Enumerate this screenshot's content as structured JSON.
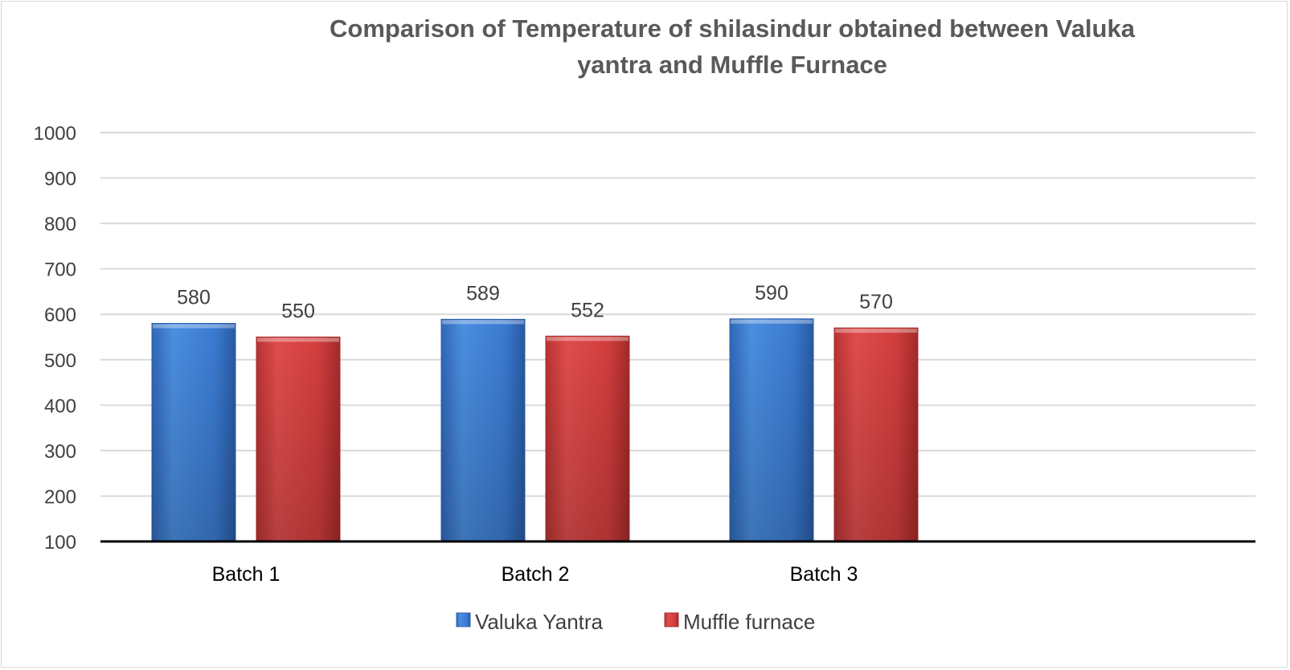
{
  "chart_data": {
    "type": "bar",
    "title": "Comparison of Temperature of shilasindur obtained between Valuka yantra and Muffle Furnace",
    "title_lines": [
      "Comparison of Temperature of shilasindur obtained between Valuka",
      "yantra and Muffle Furnace"
    ],
    "xlabel": "",
    "ylabel": "",
    "categories": [
      "Batch 1",
      "Batch 2",
      "Batch 3"
    ],
    "series": [
      {
        "name": "Valuka Yantra",
        "values": [
          580,
          589,
          590
        ],
        "color": "#3f7fd6",
        "color_dark": "#2c5fa8"
      },
      {
        "name": "Muffle furnace",
        "values": [
          550,
          552,
          570
        ],
        "color": "#d93f3f",
        "color_dark": "#a82c2c"
      }
    ],
    "ylim": [
      100,
      1000
    ],
    "yticks": [
      100,
      200,
      300,
      400,
      500,
      600,
      700,
      800,
      900,
      1000
    ],
    "grid": true,
    "legend_position": "bottom",
    "data_labels": true
  }
}
